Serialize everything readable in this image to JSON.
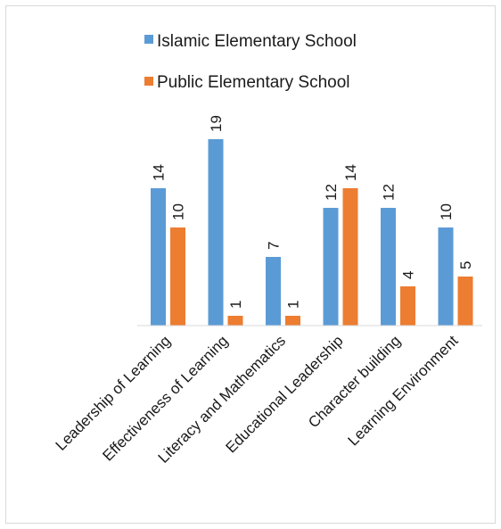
{
  "chart_data": {
    "type": "bar",
    "title": "",
    "xlabel": "",
    "ylabel": "",
    "categories": [
      "Leadership of Learning",
      "Effectiveness of Learning",
      "Literacy and Mathematics",
      "Educational Leadership",
      "Character building",
      "Learning Environment"
    ],
    "series": [
      {
        "name": "Islamic Elementary School",
        "color": "#5b9bd5",
        "values": [
          14,
          19,
          7,
          12,
          12,
          10
        ]
      },
      {
        "name": "Public Elementary School",
        "color": "#ed7d31",
        "values": [
          10,
          1,
          1,
          14,
          4,
          5
        ]
      }
    ],
    "ylim": [
      0,
      20
    ],
    "grid": false,
    "legend_position": "top",
    "data_labels": true
  }
}
